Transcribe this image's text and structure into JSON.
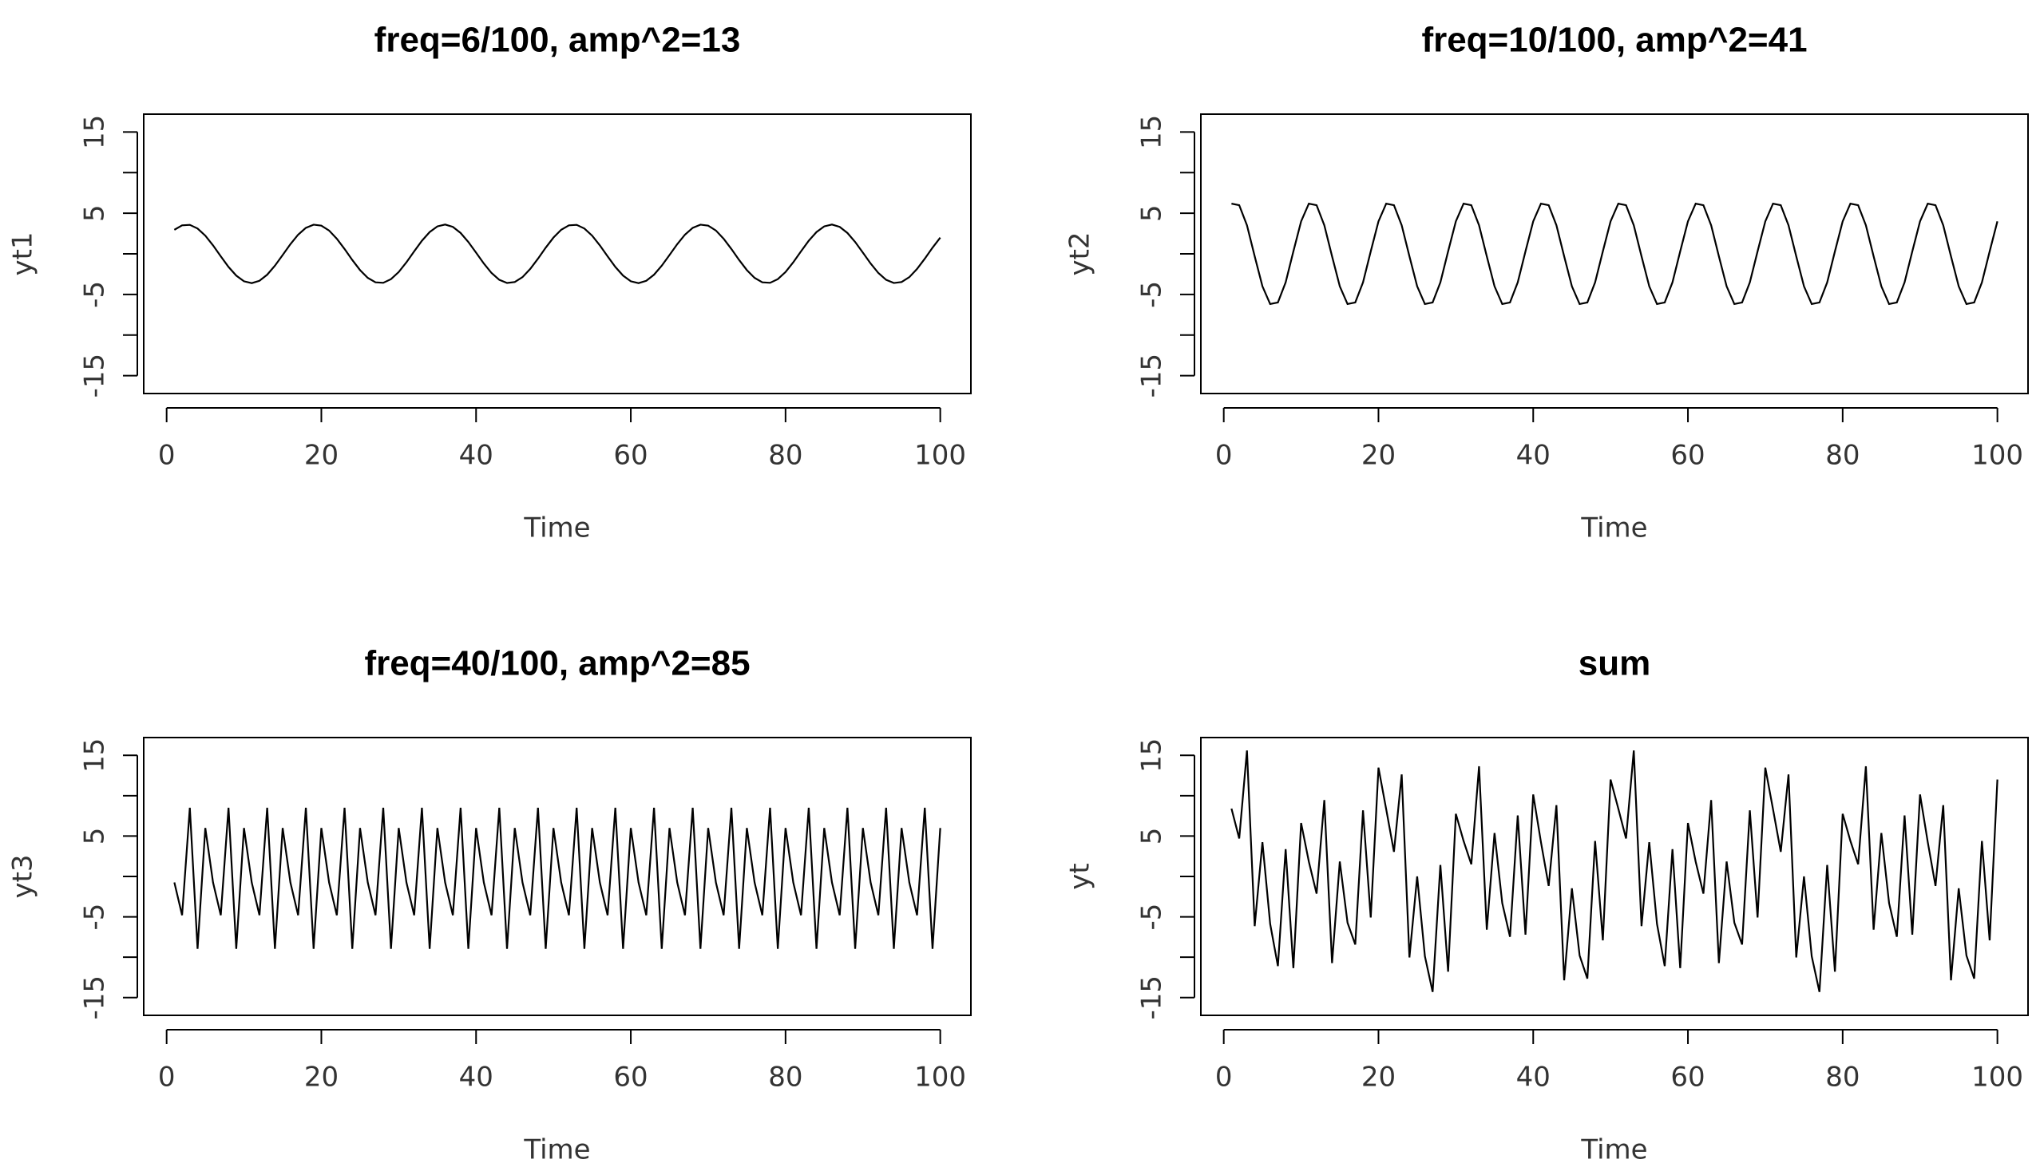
{
  "chart_data": [
    {
      "type": "line",
      "title": "freq=6/100, amp^2=13",
      "x_label": "Time",
      "y_label": "yt1",
      "color": "#000000",
      "x": [
        1,
        2,
        3,
        4,
        5,
        6,
        7,
        8,
        9,
        10,
        11,
        12,
        13,
        14,
        15,
        16,
        17,
        18,
        19,
        20,
        21,
        22,
        23,
        24,
        25,
        26,
        27,
        28,
        29,
        30,
        31,
        32,
        33,
        34,
        35,
        36,
        37,
        38,
        39,
        40,
        41,
        42,
        43,
        44,
        45,
        46,
        47,
        48,
        49,
        50,
        51,
        52,
        53,
        54,
        55,
        56,
        57,
        58,
        59,
        60,
        61,
        62,
        63,
        64,
        65,
        66,
        67,
        68,
        69,
        70,
        71,
        72,
        73,
        74,
        75,
        76,
        77,
        78,
        79,
        80,
        81,
        82,
        83,
        84,
        85,
        86,
        87,
        88,
        89,
        90,
        91,
        92,
        93,
        94,
        95,
        96,
        97,
        98,
        99,
        100
      ],
      "values": [
        2.96,
        3.51,
        3.57,
        3.12,
        2.24,
        1.04,
        -0.31,
        -1.61,
        -2.68,
        -3.38,
        -3.61,
        -3.32,
        -2.57,
        -1.46,
        -0.15,
        1.19,
        2.36,
        3.2,
        3.59,
        3.47,
        2.87,
        1.86,
        0.6,
        -0.76,
        -2,
        -2.96,
        -3.51,
        -3.57,
        -3.12,
        -2.24,
        -1.04,
        0.31,
        1.61,
        2.68,
        3.38,
        3.61,
        3.32,
        2.57,
        1.46,
        0.15,
        -1.19,
        -2.36,
        -3.2,
        -3.59,
        -3.47,
        -2.87,
        -1.86,
        -0.6,
        0.76,
        2,
        2.96,
        3.51,
        3.57,
        3.12,
        2.24,
        1.04,
        -0.31,
        -1.61,
        -2.68,
        -3.38,
        -3.61,
        -3.32,
        -2.57,
        -1.46,
        -0.15,
        1.19,
        2.36,
        3.2,
        3.59,
        3.47,
        2.87,
        1.86,
        0.6,
        -0.76,
        -2,
        -2.96,
        -3.51,
        -3.57,
        -3.12,
        -2.24,
        -1.04,
        0.31,
        1.61,
        2.68,
        3.38,
        3.61,
        3.32,
        2.57,
        1.46,
        0.15,
        -1.19,
        -2.36,
        -3.2,
        -3.59,
        -3.47,
        -2.87,
        -1.86,
        -0.6,
        0.76,
        2
      ],
      "xlim": [
        -2.96,
        103.96
      ],
      "xticks": [
        0,
        20,
        40,
        60,
        80,
        100
      ],
      "ylim": [
        -17.2,
        17.2
      ],
      "yticks": [
        -15,
        {
          "value": -10,
          "label": null
        },
        -5,
        {
          "value": 0,
          "label": null
        },
        5,
        {
          "value": 10,
          "label": null
        },
        15
      ]
    },
    {
      "type": "line",
      "title": "freq=10/100, amp^2=41",
      "x_label": "Time",
      "y_label": "yt2",
      "color": "#000000",
      "x": [
        1,
        2,
        3,
        4,
        5,
        6,
        7,
        8,
        9,
        10,
        11,
        12,
        13,
        14,
        15,
        16,
        17,
        18,
        19,
        20,
        21,
        22,
        23,
        24,
        25,
        26,
        27,
        28,
        29,
        30,
        31,
        32,
        33,
        34,
        35,
        36,
        37,
        38,
        39,
        40,
        41,
        42,
        43,
        44,
        45,
        46,
        47,
        48,
        49,
        50,
        51,
        52,
        53,
        54,
        55,
        56,
        57,
        58,
        59,
        60,
        61,
        62,
        63,
        64,
        65,
        66,
        67,
        68,
        69,
        70,
        71,
        72,
        73,
        74,
        75,
        76,
        77,
        78,
        79,
        80,
        81,
        82,
        83,
        84,
        85,
        86,
        87,
        88,
        89,
        90,
        91,
        92,
        93,
        94,
        95,
        96,
        97,
        98,
        99,
        100
      ],
      "values": [
        6.18,
        5.99,
        3.52,
        -0.3,
        -4,
        -6.18,
        -5.99,
        -3.52,
        0.3,
        4,
        6.18,
        5.99,
        3.52,
        -0.3,
        -4,
        -6.18,
        -5.99,
        -3.52,
        0.3,
        4,
        6.18,
        5.99,
        3.52,
        -0.3,
        -4,
        -6.18,
        -5.99,
        -3.52,
        0.3,
        4,
        6.18,
        5.99,
        3.52,
        -0.3,
        -4,
        -6.18,
        -5.99,
        -3.52,
        0.3,
        4,
        6.18,
        5.99,
        3.52,
        -0.3,
        -4,
        -6.18,
        -5.99,
        -3.52,
        0.3,
        4,
        6.18,
        5.99,
        3.52,
        -0.3,
        -4,
        -6.18,
        -5.99,
        -3.52,
        0.3,
        4,
        6.18,
        5.99,
        3.52,
        -0.3,
        -4,
        -6.18,
        -5.99,
        -3.52,
        0.3,
        4,
        6.18,
        5.99,
        3.52,
        -0.3,
        -4,
        -6.18,
        -5.99,
        -3.52,
        0.3,
        4,
        6.18,
        5.99,
        3.52,
        -0.3,
        -4,
        -6.18,
        -5.99,
        -3.52,
        0.3,
        4,
        6.18,
        5.99,
        3.52,
        -0.3,
        -4,
        -6.18,
        -5.99,
        -3.52,
        0.3,
        4
      ],
      "xlim": [
        -2.96,
        103.96
      ],
      "xticks": [
        0,
        20,
        40,
        60,
        80,
        100
      ],
      "ylim": [
        -17.2,
        17.2
      ],
      "yticks": [
        -15,
        {
          "value": -10,
          "label": null
        },
        -5,
        {
          "value": 0,
          "label": null
        },
        5,
        {
          "value": 10,
          "label": null
        },
        15
      ]
    },
    {
      "type": "line",
      "title": "freq=40/100, amp^2=85",
      "x_label": "Time",
      "y_label": "yt3",
      "color": "#000000",
      "x": [
        1,
        2,
        3,
        4,
        5,
        6,
        7,
        8,
        9,
        10,
        11,
        12,
        13,
        14,
        15,
        16,
        17,
        18,
        19,
        20,
        21,
        22,
        23,
        24,
        25,
        26,
        27,
        28,
        29,
        30,
        31,
        32,
        33,
        34,
        35,
        36,
        37,
        38,
        39,
        40,
        41,
        42,
        43,
        44,
        45,
        46,
        47,
        48,
        49,
        50,
        51,
        52,
        53,
        54,
        55,
        56,
        57,
        58,
        59,
        60,
        61,
        62,
        63,
        64,
        65,
        66,
        67,
        68,
        69,
        70,
        71,
        72,
        73,
        74,
        75,
        76,
        77,
        78,
        79,
        80,
        81,
        82,
        83,
        84,
        85,
        86,
        87,
        88,
        89,
        90,
        91,
        92,
        93,
        94,
        95,
        96,
        97,
        98,
        99,
        100
      ],
      "values": [
        -0.74,
        -4.8,
        8.51,
        -8.97,
        6,
        -0.74,
        -4.8,
        8.51,
        -8.97,
        6,
        -0.74,
        -4.8,
        8.51,
        -8.97,
        6,
        -0.74,
        -4.8,
        8.51,
        -8.97,
        6,
        -0.74,
        -4.8,
        8.51,
        -8.97,
        6,
        -0.74,
        -4.8,
        8.51,
        -8.97,
        6,
        -0.74,
        -4.8,
        8.51,
        -8.97,
        6,
        -0.74,
        -4.8,
        8.51,
        -8.97,
        6,
        -0.74,
        -4.8,
        8.51,
        -8.97,
        6,
        -0.74,
        -4.8,
        8.51,
        -8.97,
        6,
        -0.74,
        -4.8,
        8.51,
        -8.97,
        6,
        -0.74,
        -4.8,
        8.51,
        -8.97,
        6,
        -0.74,
        -4.8,
        8.51,
        -8.97,
        6,
        -0.74,
        -4.8,
        8.51,
        -8.97,
        6,
        -0.74,
        -4.8,
        8.51,
        -8.97,
        6,
        -0.74,
        -4.8,
        8.51,
        -8.97,
        6,
        -0.74,
        -4.8,
        8.51,
        -8.97,
        6,
        -0.74,
        -4.8,
        8.51,
        -8.97,
        6,
        -0.74,
        -4.8,
        8.51,
        -8.97,
        6,
        -0.74,
        -4.8,
        8.51,
        -8.97,
        6
      ],
      "xlim": [
        -2.96,
        103.96
      ],
      "xticks": [
        0,
        20,
        40,
        60,
        80,
        100
      ],
      "ylim": [
        -17.2,
        17.2
      ],
      "yticks": [
        -15,
        {
          "value": -10,
          "label": null
        },
        -5,
        {
          "value": 0,
          "label": null
        },
        5,
        {
          "value": 10,
          "label": null
        },
        15
      ]
    },
    {
      "type": "line",
      "title": "sum",
      "x_label": "Time",
      "y_label": "yt",
      "color": "#000000",
      "x": [
        1,
        2,
        3,
        4,
        5,
        6,
        7,
        8,
        9,
        10,
        11,
        12,
        13,
        14,
        15,
        16,
        17,
        18,
        19,
        20,
        21,
        22,
        23,
        24,
        25,
        26,
        27,
        28,
        29,
        30,
        31,
        32,
        33,
        34,
        35,
        36,
        37,
        38,
        39,
        40,
        41,
        42,
        43,
        44,
        45,
        46,
        47,
        48,
        49,
        50,
        51,
        52,
        53,
        54,
        55,
        56,
        57,
        58,
        59,
        60,
        61,
        62,
        63,
        64,
        65,
        66,
        67,
        68,
        69,
        70,
        71,
        72,
        73,
        74,
        75,
        76,
        77,
        78,
        79,
        80,
        81,
        82,
        83,
        84,
        85,
        86,
        87,
        88,
        89,
        90,
        91,
        92,
        93,
        94,
        95,
        96,
        97,
        98,
        99,
        100
      ],
      "values": [
        8.4,
        4.7,
        15.6,
        -6.15,
        4.24,
        -5.88,
        -11.1,
        3.38,
        -11.35,
        6.62,
        1.83,
        -2.13,
        9.46,
        -10.73,
        1.85,
        -5.73,
        -8.43,
        8.19,
        -5.08,
        13.47,
        8.31,
        3.05,
        12.63,
        -10.03,
        0,
        -9.88,
        -14.3,
        1.42,
        -11.79,
        7.76,
        4.4,
        1.5,
        13.64,
        -6.59,
        5.38,
        -3.31,
        -7.47,
        7.56,
        -7.21,
        10.15,
        4.25,
        -1.17,
        8.83,
        -12.86,
        -1.47,
        -9.79,
        -12.65,
        4.39,
        -7.91,
        12,
        8.4,
        4.7,
        15.6,
        -6.15,
        4.24,
        -5.88,
        -11.1,
        3.38,
        -11.35,
        6.62,
        1.83,
        -2.13,
        9.46,
        -10.73,
        1.85,
        -5.73,
        -8.43,
        8.19,
        -5.08,
        13.47,
        8.31,
        3.05,
        12.63,
        -10.03,
        0,
        -9.88,
        -14.3,
        1.42,
        -11.79,
        7.76,
        4.4,
        1.5,
        13.64,
        -6.59,
        5.38,
        -3.31,
        -7.47,
        7.56,
        -7.21,
        10.15,
        4.25,
        -1.17,
        8.83,
        -12.86,
        -1.47,
        -9.79,
        -12.65,
        4.39,
        -7.91,
        12
      ],
      "xlim": [
        -2.96,
        103.96
      ],
      "xticks": [
        0,
        20,
        40,
        60,
        80,
        100
      ],
      "ylim": [
        -17.2,
        17.2
      ],
      "yticks": [
        -15,
        {
          "value": -10,
          "label": null
        },
        -5,
        {
          "value": 0,
          "label": null
        },
        5,
        {
          "value": 10,
          "label": null
        },
        15
      ]
    }
  ]
}
